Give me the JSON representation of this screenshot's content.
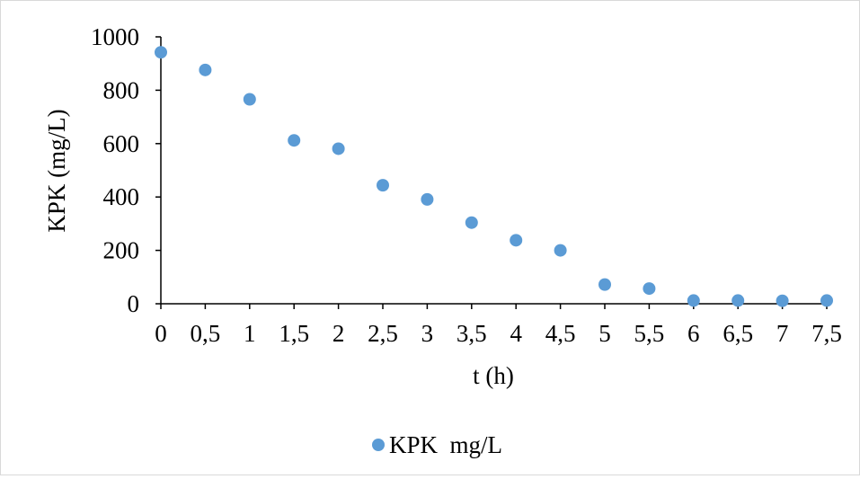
{
  "chart_data": {
    "type": "scatter",
    "title": "",
    "xlabel": "t (h)",
    "ylabel": "KPK (mg/L)",
    "xlim": [
      0,
      7.5
    ],
    "ylim": [
      0,
      1000
    ],
    "x_ticks": [
      0,
      0.5,
      1,
      1.5,
      2,
      2.5,
      3,
      3.5,
      4,
      4.5,
      5,
      5.5,
      6,
      6.5,
      7,
      7.5
    ],
    "x_tick_labels": [
      "0",
      "0,5",
      "1",
      "1,5",
      "2",
      "2,5",
      "3",
      "3,5",
      "4",
      "4,5",
      "5",
      "5,5",
      "6",
      "6,5",
      "7",
      "7,5"
    ],
    "y_ticks": [
      0,
      200,
      400,
      600,
      800,
      1000
    ],
    "y_tick_labels": [
      "0",
      "200",
      "400",
      "600",
      "800",
      "1000"
    ],
    "grid": false,
    "legend_position": "bottom",
    "series": [
      {
        "name": "KPK  mg/L",
        "color": "#5b9bd5",
        "x": [
          0,
          0.5,
          1,
          1.5,
          2,
          2.5,
          3,
          3.5,
          4,
          4.5,
          5,
          5.5,
          6,
          6.5,
          7,
          7.5
        ],
        "y": [
          942,
          876,
          766,
          612,
          581,
          444,
          391,
          304,
          238,
          200,
          72,
          57,
          12,
          12,
          11,
          12
        ]
      }
    ]
  }
}
